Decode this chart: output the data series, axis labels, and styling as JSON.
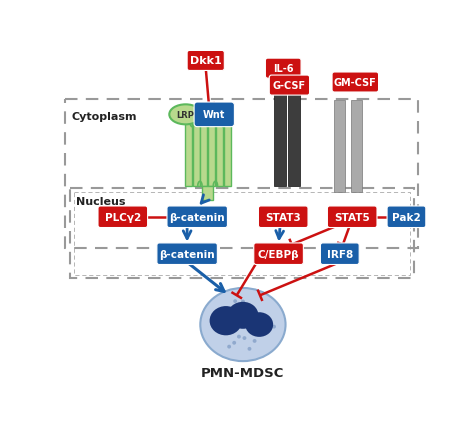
{
  "bg_color": "#ffffff",
  "red": "#cc1111",
  "blue": "#1a5fa8",
  "light_blue": "#b8cfe8",
  "green_fill": "#5cb85c",
  "green_light": "#b8d98d",
  "green_border": "#5cb85c",
  "receptor_dark": "#3d3d3d",
  "receptor_gray": "#aaaaaa",
  "dashed_box_color": "#999999",
  "text_dark": "#222222",
  "cell_outer": "#c0d0e8",
  "cell_border": "#8aaace",
  "nucleus_dark": "#1a3575",
  "dot_color": "#6a8ab8",
  "labels": {
    "Dkk1": "Dkk1",
    "Wnt": "Wnt",
    "LRP": "LRP",
    "PLCy2": "PLCγ2",
    "beta_cat_cyto": "β-catenin",
    "STAT3": "STAT3",
    "STAT5": "STAT5",
    "Pak2": "Pak2",
    "IL6": "IL-6",
    "GCSF": "G-CSF",
    "GMCSF": "GM-CSF",
    "beta_cat_nuc": "β-catenin",
    "CEBPb": "C/EBPβ",
    "IRF8": "IRF8",
    "PMN_MDSC": "PMN-MDSC",
    "Cytoplasm": "Cytoplasm",
    "Nucleus": "Nucleus"
  }
}
